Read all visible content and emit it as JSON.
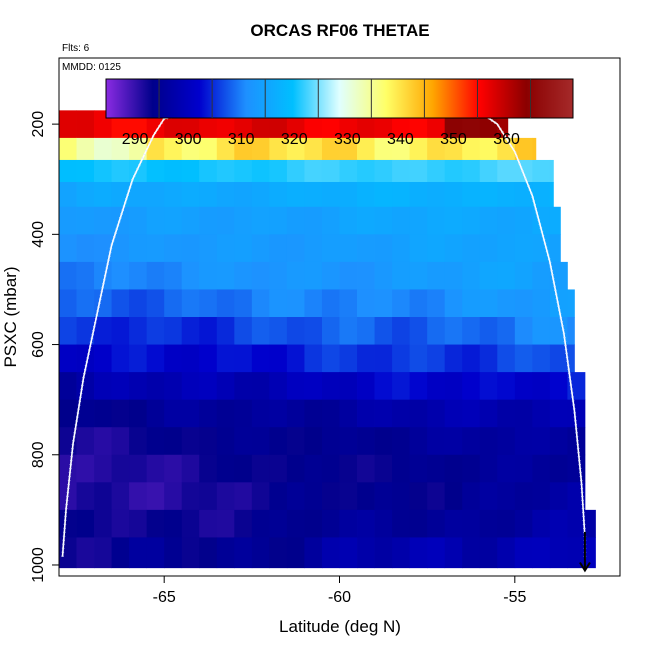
{
  "chart_data": {
    "type": "heatmap",
    "title": "ORCAS RF06 THETAE",
    "subtitle": "Flts: 6",
    "annotation": "MMDD: 0125",
    "xlabel": "Latitude (deg N)",
    "ylabel": "PSXC (mbar)",
    "xlim": [
      -68.0,
      -52.0
    ],
    "ylim": [
      1020,
      80
    ],
    "x_ticks": [
      -65,
      -60,
      -55
    ],
    "y_ticks": [
      200,
      400,
      600,
      800,
      1000
    ],
    "colorbar": {
      "range": [
        280,
        368
      ],
      "ticks": [
        290,
        300,
        310,
        320,
        330,
        340,
        350,
        360
      ],
      "colors": [
        "#8a2be2",
        "#00008b",
        "#0000cd",
        "#1e90ff",
        "#00bfff",
        "#e0ffff",
        "#ffff66",
        "#ffa500",
        "#ff0000",
        "#8b0000",
        "#a52a2a"
      ]
    },
    "bin_width_deg": 0.5,
    "pressure_levels": [
      {
        "p_top": 175,
        "p_bot": 225,
        "lon_end": -55.2,
        "base": 352,
        "variation": 6
      },
      {
        "p_top": 225,
        "p_bot": 265,
        "lon_end": -54.4,
        "base": 333,
        "variation": 10
      },
      {
        "p_top": 265,
        "p_bot": 305,
        "lon_end": -53.9,
        "base": 317,
        "variation": 3
      },
      {
        "p_top": 305,
        "p_bot": 350,
        "lon_end": -53.9,
        "base": 312,
        "variation": 3
      },
      {
        "p_top": 350,
        "p_bot": 400,
        "lon_end": -53.7,
        "base": 310,
        "variation": 3
      },
      {
        "p_top": 400,
        "p_bot": 450,
        "lon_end": -53.7,
        "base": 309,
        "variation": 3
      },
      {
        "p_top": 450,
        "p_bot": 500,
        "lon_end": -53.5,
        "base": 308,
        "variation": 4
      },
      {
        "p_top": 500,
        "p_bot": 550,
        "lon_end": -53.3,
        "base": 306,
        "variation": 5
      },
      {
        "p_top": 550,
        "p_bot": 600,
        "lon_end": -53.3,
        "base": 303,
        "variation": 6
      },
      {
        "p_top": 600,
        "p_bot": 650,
        "lon_end": -53.3,
        "base": 300,
        "variation": 6
      },
      {
        "p_top": 650,
        "p_bot": 700,
        "lon_end": -53.0,
        "base": 296,
        "variation": 6
      },
      {
        "p_top": 700,
        "p_bot": 750,
        "lon_end": -53.0,
        "base": 292,
        "variation": 5
      },
      {
        "p_top": 750,
        "p_bot": 800,
        "lon_end": -53.0,
        "base": 290,
        "variation": 4
      },
      {
        "p_top": 800,
        "p_bot": 850,
        "lon_end": -53.0,
        "base": 289,
        "variation": 4
      },
      {
        "p_top": 850,
        "p_bot": 900,
        "lon_end": -53.0,
        "base": 289,
        "variation": 5
      },
      {
        "p_top": 900,
        "p_bot": 950,
        "lon_end": -52.7,
        "base": 290,
        "variation": 5
      },
      {
        "p_top": 950,
        "p_bot": 1005,
        "lon_end": -52.7,
        "base": 292,
        "variation": 7
      }
    ],
    "flight_track": [
      {
        "lat": -67.9,
        "p": 985
      },
      {
        "lat": -67.8,
        "p": 900
      },
      {
        "lat": -67.6,
        "p": 780
      },
      {
        "lat": -67.3,
        "p": 660
      },
      {
        "lat": -66.9,
        "p": 540
      },
      {
        "lat": -66.5,
        "p": 420
      },
      {
        "lat": -65.9,
        "p": 300
      },
      {
        "lat": -65.3,
        "p": 220
      },
      {
        "lat": -65.0,
        "p": 190
      },
      {
        "lat": -64.0,
        "p": 178
      },
      {
        "lat": -60.0,
        "p": 178
      },
      {
        "lat": -56.0,
        "p": 178
      },
      {
        "lat": -55.5,
        "p": 200
      },
      {
        "lat": -55.0,
        "p": 250
      },
      {
        "lat": -54.5,
        "p": 330
      },
      {
        "lat": -54.0,
        "p": 450
      },
      {
        "lat": -53.6,
        "p": 580
      },
      {
        "lat": -53.3,
        "p": 720
      },
      {
        "lat": -53.1,
        "p": 850
      },
      {
        "lat": -53.0,
        "p": 950
      },
      {
        "lat": -53.0,
        "p": 990
      }
    ],
    "arrow": {
      "lat": -53.0,
      "p_start": 940,
      "p_end": 1010
    }
  }
}
